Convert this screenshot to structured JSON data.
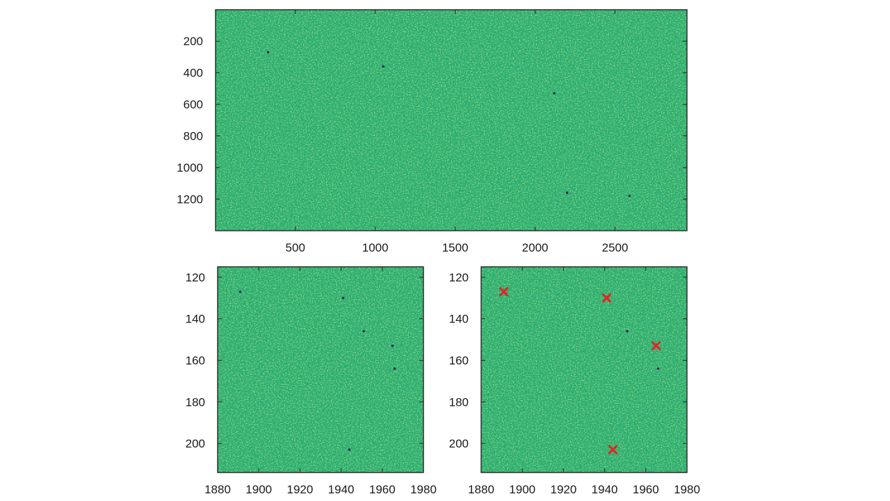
{
  "colors": {
    "background": "#ffffff",
    "field_base": "#27ad6e",
    "field_low": "#1f9a6a",
    "field_high": "#a6c93a",
    "field_yellow": "#c9d43a",
    "frame": "#222222",
    "dark_spot": "#1c2f5a",
    "marker": "#e0262b"
  },
  "chart_data": [
    {
      "type": "heatmap",
      "colormap": "parula",
      "xlim": [
        1,
        2950
      ],
      "ylim": [
        1,
        1400
      ],
      "y_reversed": true,
      "xticks": [
        500,
        1000,
        1500,
        2000,
        2500
      ],
      "xticklabels": [
        "500",
        "1000",
        "1500",
        "2000",
        "2500"
      ],
      "yticks": [
        200,
        400,
        600,
        800,
        1000,
        1200
      ],
      "yticklabels": [
        "200",
        "400",
        "600",
        "800",
        "1000",
        "1200"
      ],
      "dark_spots": [
        {
          "x": 330,
          "y": 270
        },
        {
          "x": 1050,
          "y": 360
        },
        {
          "x": 2120,
          "y": 530
        },
        {
          "x": 2200,
          "y": 1160
        },
        {
          "x": 2590,
          "y": 1180
        }
      ]
    },
    {
      "type": "heatmap",
      "colormap": "parula",
      "xlim": [
        1880,
        1980
      ],
      "ylim": [
        115,
        214
      ],
      "y_reversed": true,
      "xticks": [
        1880,
        1900,
        1920,
        1940,
        1960,
        1980
      ],
      "xticklabels": [
        "1880",
        "1900",
        "1920",
        "1940",
        "1960",
        "1980"
      ],
      "yticks": [
        120,
        140,
        160,
        180,
        200
      ],
      "yticklabels": [
        "120",
        "140",
        "160",
        "180",
        "200"
      ],
      "dark_spots": [
        {
          "x": 1891,
          "y": 127
        },
        {
          "x": 1941,
          "y": 130
        },
        {
          "x": 1951,
          "y": 146
        },
        {
          "x": 1965,
          "y": 153
        },
        {
          "x": 1966,
          "y": 164
        },
        {
          "x": 1944,
          "y": 203
        }
      ]
    },
    {
      "type": "heatmap",
      "colormap": "parula",
      "xlim": [
        1880,
        1980
      ],
      "ylim": [
        115,
        214
      ],
      "y_reversed": true,
      "xticks": [
        1880,
        1900,
        1920,
        1940,
        1960,
        1980
      ],
      "xticklabels": [
        "1880",
        "1900",
        "1920",
        "1940",
        "1960",
        "1980"
      ],
      "yticks": [
        120,
        140,
        160,
        180,
        200
      ],
      "yticklabels": [
        "120",
        "140",
        "160",
        "180",
        "200"
      ],
      "dark_spots": [
        {
          "x": 1951,
          "y": 146
        },
        {
          "x": 1966,
          "y": 164
        }
      ],
      "markers": {
        "symbol": "x",
        "points": [
          {
            "x": 1891,
            "y": 127
          },
          {
            "x": 1941,
            "y": 130
          },
          {
            "x": 1965,
            "y": 153
          },
          {
            "x": 1944,
            "y": 203
          }
        ]
      }
    }
  ]
}
